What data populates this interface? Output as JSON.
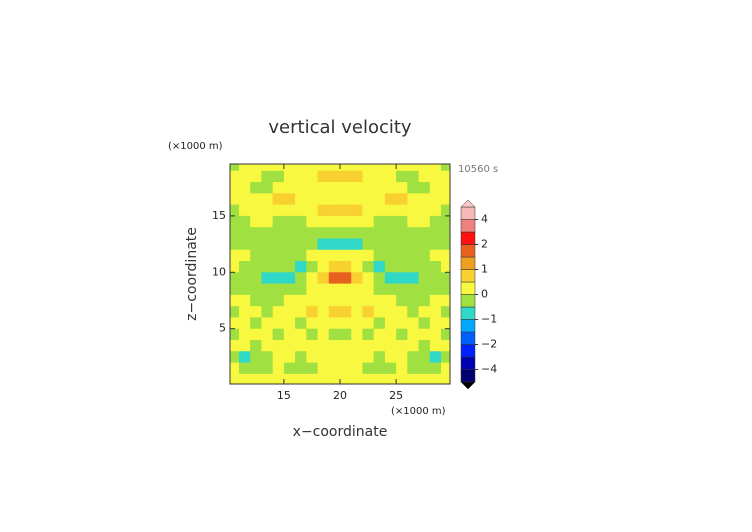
{
  "chart_data": {
    "type": "contour",
    "title": "vertical velocity",
    "xlabel": "x−coordinate",
    "ylabel": "z−coordinate",
    "xunit": "(×1000 m)",
    "yunit": "(×1000 m)",
    "time": "10560 s",
    "xlim": [
      10.2,
      29.8
    ],
    "ylim": [
      0.1,
      19.6
    ],
    "xticks": [
      15,
      20,
      25
    ],
    "yticks": [
      5,
      10,
      15
    ],
    "x": [
      10.5,
      11.5,
      12.5,
      13.5,
      14.5,
      15.5,
      16.5,
      17.5,
      18.5,
      19.5,
      20.5,
      21.5,
      22.5,
      23.5,
      24.5,
      25.5,
      26.5,
      27.5,
      28.5,
      29.5
    ],
    "z": [
      19.5,
      18.5,
      17.5,
      16.5,
      15.5,
      14.5,
      13.5,
      12.5,
      11.5,
      10.5,
      9.5,
      8.5,
      7.5,
      6.5,
      5.5,
      4.5,
      3.5,
      2.5,
      1.5,
      0.5
    ],
    "field": [
      [
        -0.2,
        0.2,
        0.2,
        0.2,
        0.2,
        0.2,
        0.2,
        0.2,
        0.2,
        0.2,
        0.2,
        0.2,
        0.2,
        0.2,
        0.2,
        0.2,
        0.2,
        0.2,
        0.2,
        -0.2
      ],
      [
        0.1,
        0.3,
        0.2,
        -0.2,
        -0.2,
        0.2,
        0.3,
        0.3,
        0.6,
        0.6,
        0.6,
        0.6,
        0.3,
        0.3,
        0.2,
        -0.2,
        -0.2,
        0.2,
        0.3,
        0.1
      ],
      [
        0.2,
        0.3,
        -0.2,
        -0.3,
        0.2,
        0.3,
        0.3,
        0.2,
        0.2,
        0.2,
        0.2,
        0.2,
        0.2,
        0.3,
        0.3,
        0.2,
        -0.3,
        -0.2,
        0.3,
        0.2
      ],
      [
        0.2,
        0.3,
        0.3,
        0.4,
        0.7,
        0.7,
        0.3,
        0.2,
        0.2,
        0.2,
        0.2,
        0.2,
        0.2,
        0.3,
        0.7,
        0.7,
        0.4,
        0.3,
        0.3,
        0.2
      ],
      [
        -0.2,
        0.2,
        0.3,
        0.3,
        0.3,
        0.3,
        0.3,
        0.4,
        0.6,
        0.6,
        0.6,
        0.6,
        0.4,
        0.3,
        0.3,
        0.3,
        0.3,
        0.3,
        0.2,
        -0.2
      ],
      [
        -0.2,
        -0.2,
        0.1,
        0.2,
        -0.2,
        -0.2,
        -0.2,
        0.2,
        0.2,
        0.2,
        0.2,
        0.2,
        0.2,
        -0.2,
        -0.2,
        -0.2,
        0.2,
        0.1,
        -0.2,
        -0.2
      ],
      [
        -0.2,
        -0.2,
        -0.2,
        -0.2,
        -0.2,
        -0.2,
        -0.2,
        -0.2,
        -0.2,
        -0.2,
        -0.2,
        -0.2,
        -0.2,
        -0.2,
        -0.2,
        -0.2,
        -0.2,
        -0.2,
        -0.2,
        -0.2
      ],
      [
        -0.2,
        -0.2,
        -0.2,
        -0.2,
        -0.2,
        -0.2,
        -0.2,
        -0.2,
        -0.6,
        -0.6,
        -0.6,
        -0.6,
        -0.2,
        -0.2,
        -0.2,
        -0.2,
        -0.2,
        -0.2,
        -0.2,
        -0.2
      ],
      [
        0.2,
        0.2,
        -0.2,
        -0.2,
        -0.2,
        -0.2,
        -0.2,
        0.2,
        0.2,
        0.2,
        0.2,
        0.2,
        0.2,
        -0.2,
        -0.2,
        -0.2,
        -0.2,
        -0.2,
        0.2,
        0.2
      ],
      [
        0.2,
        -0.2,
        -0.2,
        -0.2,
        -0.2,
        -0.3,
        -0.6,
        -0.2,
        0.3,
        0.8,
        0.8,
        0.3,
        -0.2,
        -0.6,
        -0.3,
        -0.2,
        -0.2,
        -0.2,
        -0.2,
        0.2
      ],
      [
        -0.2,
        -0.2,
        -0.2,
        -0.6,
        -0.7,
        -0.6,
        -0.3,
        0.2,
        0.6,
        1.6,
        1.6,
        0.6,
        0.2,
        -0.3,
        -0.6,
        -0.7,
        -0.6,
        -0.2,
        -0.2,
        -0.2
      ],
      [
        -0.2,
        -0.2,
        -0.2,
        -0.2,
        -0.2,
        -0.2,
        -0.2,
        0.2,
        0.3,
        0.4,
        0.4,
        0.3,
        0.2,
        -0.2,
        -0.2,
        -0.2,
        -0.2,
        -0.2,
        -0.2,
        -0.2
      ],
      [
        0.2,
        0.2,
        -0.2,
        -0.2,
        -0.2,
        0.2,
        0.2,
        0.2,
        0.3,
        0.2,
        0.2,
        0.3,
        0.2,
        0.2,
        0.2,
        -0.2,
        -0.2,
        -0.2,
        0.2,
        0.2
      ],
      [
        -0.2,
        0.2,
        0.2,
        -0.2,
        0.2,
        0.2,
        0.3,
        0.6,
        0.2,
        0.6,
        0.6,
        0.2,
        0.6,
        0.3,
        0.2,
        0.2,
        -0.2,
        0.2,
        0.2,
        -0.2
      ],
      [
        0.2,
        0.2,
        -0.2,
        0.2,
        0.3,
        0.2,
        -0.2,
        0.2,
        0.2,
        0.2,
        0.2,
        0.2,
        0.2,
        -0.2,
        0.2,
        0.3,
        0.2,
        -0.2,
        0.2,
        0.2
      ],
      [
        -0.2,
        0.3,
        0.3,
        0.2,
        -0.2,
        0.2,
        0.2,
        -0.2,
        0.2,
        -0.2,
        -0.2,
        0.2,
        -0.2,
        0.2,
        0.2,
        -0.2,
        0.2,
        0.3,
        0.3,
        -0.2
      ],
      [
        0.2,
        0.2,
        -0.2,
        0.2,
        0.2,
        0.2,
        0.3,
        0.2,
        0.2,
        0.2,
        0.2,
        0.2,
        0.2,
        0.3,
        0.2,
        0.2,
        0.2,
        -0.2,
        0.2,
        0.2
      ],
      [
        -0.2,
        -0.6,
        -0.2,
        -0.2,
        0.2,
        0.2,
        -0.2,
        0.2,
        0.3,
        0.3,
        0.3,
        0.3,
        0.2,
        -0.2,
        0.2,
        0.2,
        -0.2,
        -0.2,
        -0.6,
        -0.2
      ],
      [
        0.2,
        -0.2,
        -0.2,
        -0.2,
        0.2,
        -0.2,
        -0.2,
        -0.2,
        0.2,
        0.2,
        0.2,
        0.2,
        -0.2,
        -0.2,
        -0.2,
        0.2,
        -0.2,
        -0.2,
        -0.2,
        0.2
      ],
      [
        0.2,
        0.2,
        0.2,
        0.2,
        0.2,
        0.2,
        0.2,
        0.2,
        0.2,
        0.2,
        0.2,
        0.2,
        0.2,
        0.2,
        0.2,
        0.2,
        0.2,
        0.2,
        0.2,
        0.2
      ]
    ],
    "levels": [
      -5,
      -4,
      -3,
      -2,
      -1.5,
      -1,
      -0.5,
      0,
      0.5,
      1,
      1.5,
      2,
      3,
      4,
      5
    ],
    "level_colors": [
      "#000070",
      "#0000b0",
      "#0020ff",
      "#0060ff",
      "#00a8ff",
      "#30d8c8",
      "#a0e040",
      "#f8f840",
      "#f8d030",
      "#f0a020",
      "#e86020",
      "#ff1010",
      "#f08080",
      "#f8b8b8"
    ],
    "under_color": "#000000",
    "over_color": "#f8c8c8",
    "colorbar_ticks": [
      4,
      2,
      1,
      0,
      {
        "value": -1,
        "label": "−1"
      },
      {
        "value": -2,
        "label": "−2"
      },
      {
        "value": -4,
        "label": "−4"
      }
    ]
  }
}
